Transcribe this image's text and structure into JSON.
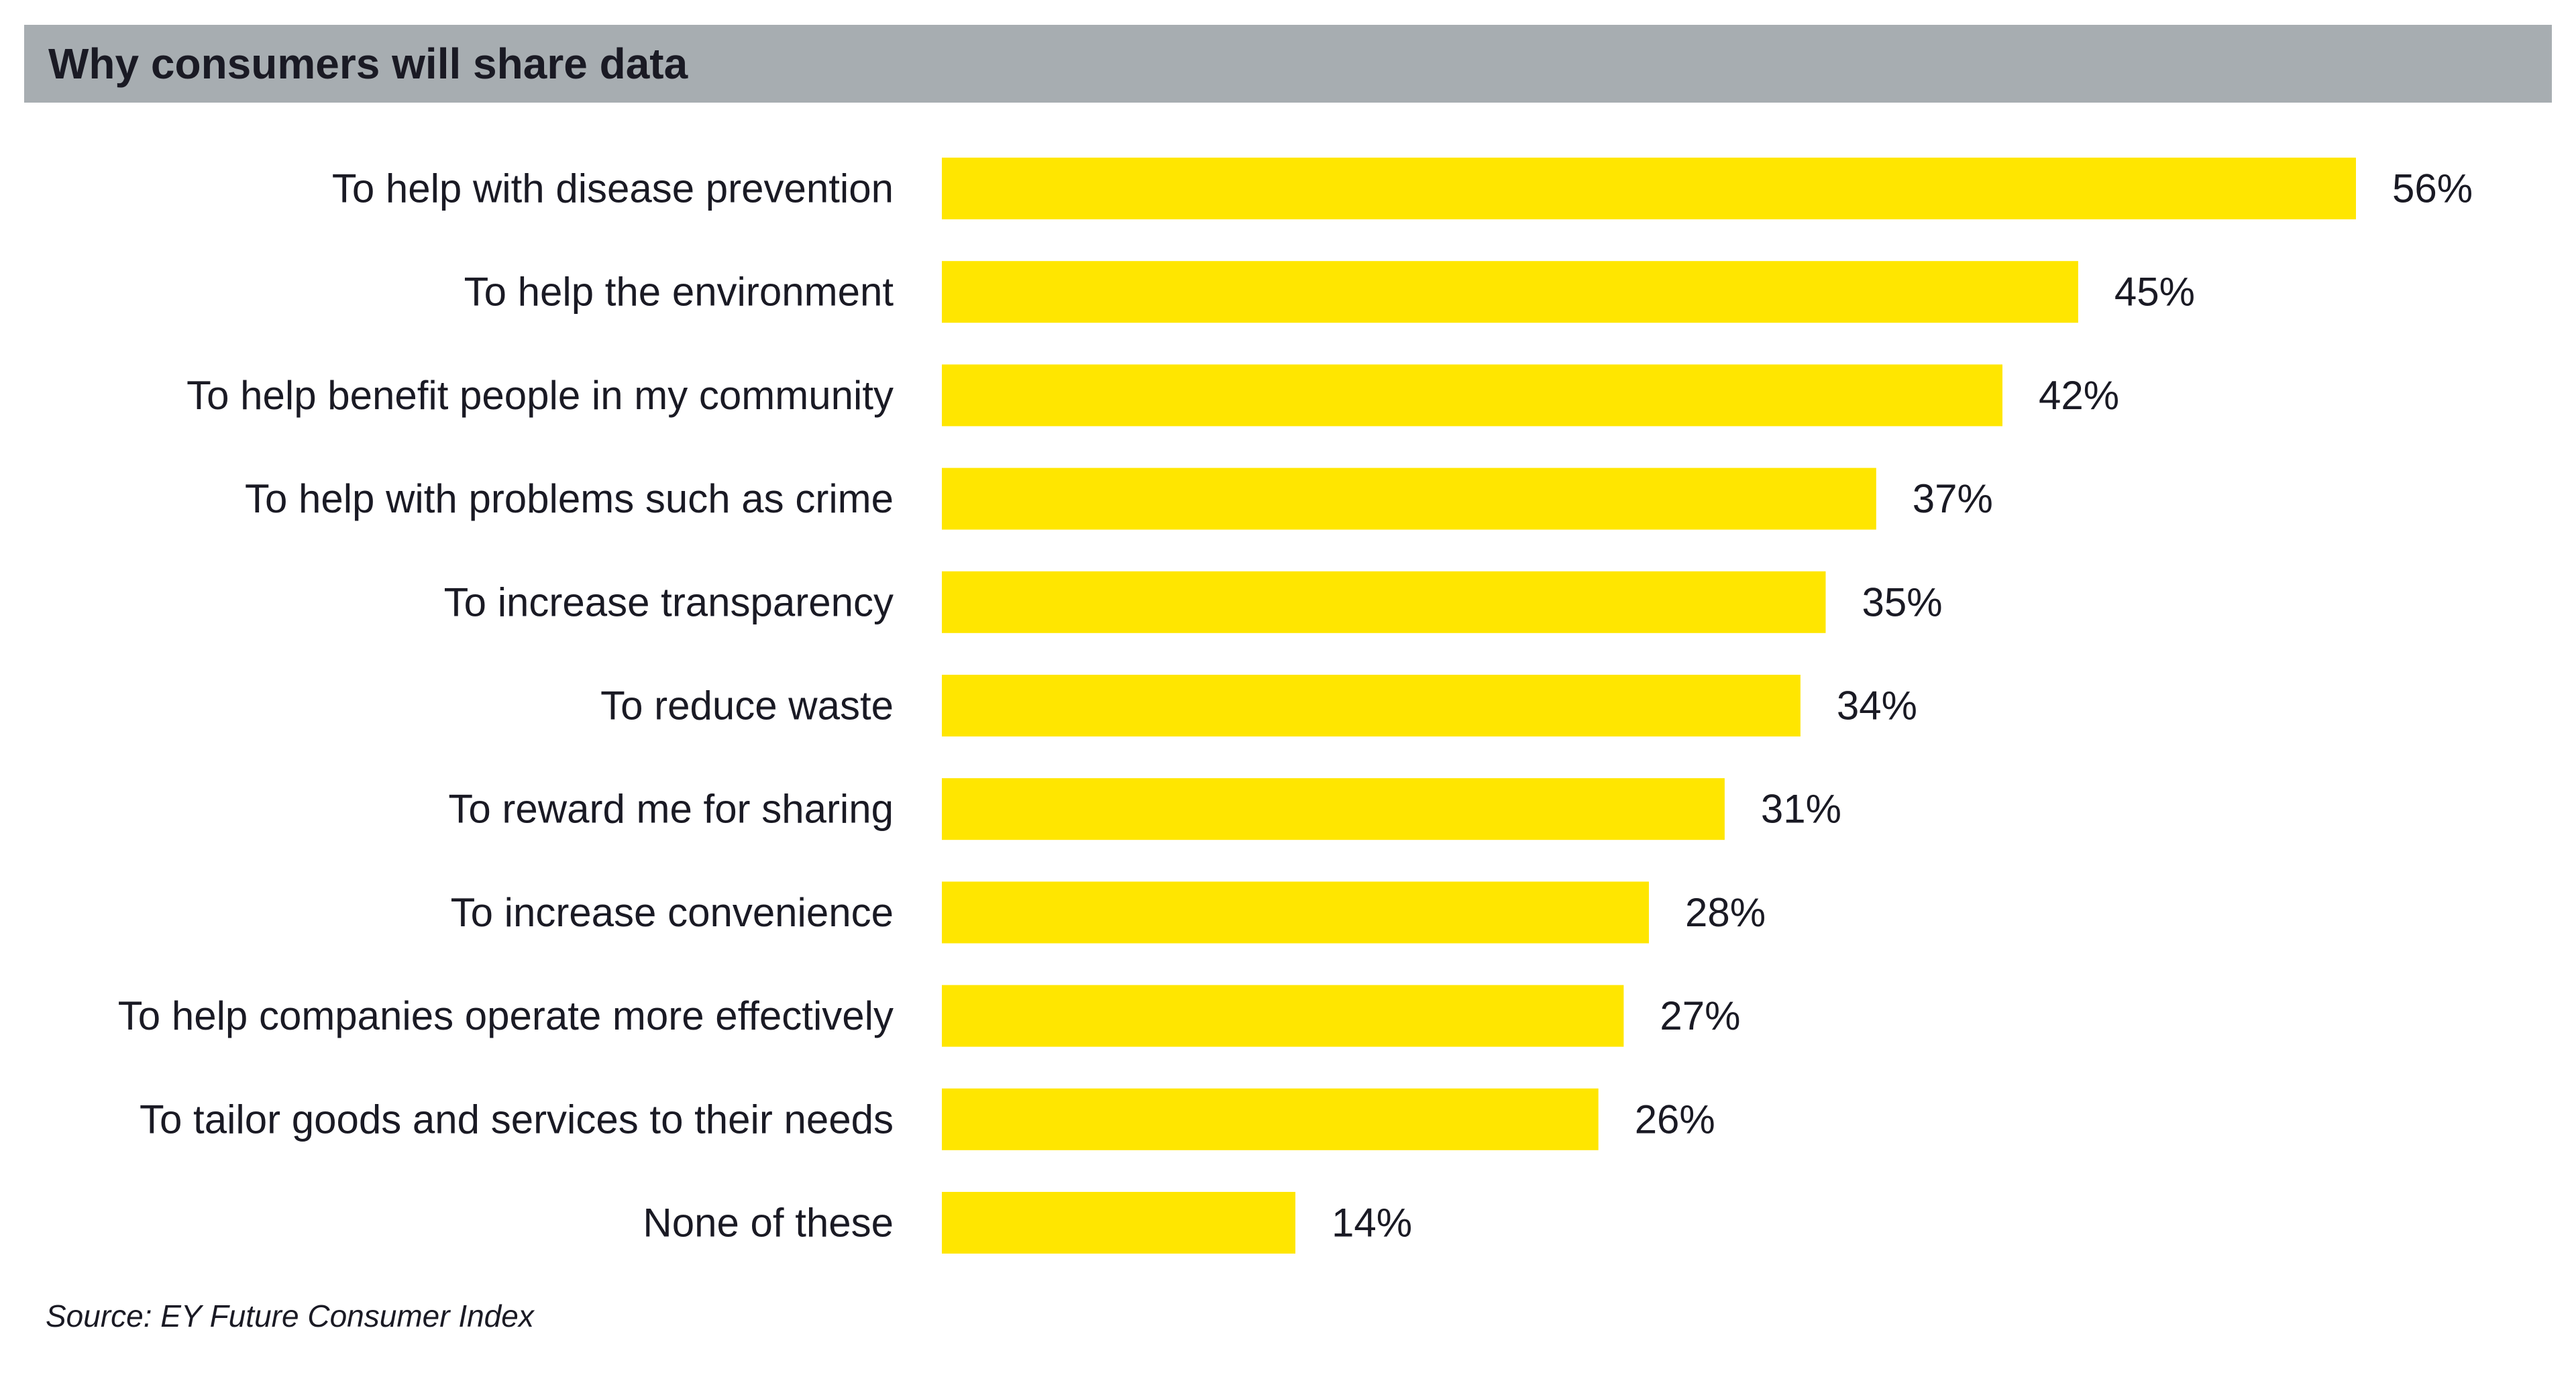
{
  "chart_data": {
    "type": "bar",
    "orientation": "horizontal",
    "title": "Why consumers will share data",
    "categories": [
      "To help with disease prevention",
      "To help the environment",
      "To help benefit people in my community",
      "To help with problems such as crime",
      "To increase transparency",
      "To reduce waste",
      "To reward me for sharing",
      "To increase convenience",
      "To help companies operate more effectively",
      "To tailor goods and services to their needs",
      "None of these"
    ],
    "values": [
      56,
      45,
      42,
      37,
      35,
      34,
      31,
      28,
      27,
      26,
      14
    ],
    "value_labels": [
      "56%",
      "45%",
      "42%",
      "37%",
      "35%",
      "34%",
      "31%",
      "28%",
      "27%",
      "26%",
      "14%"
    ],
    "unit": "%",
    "xlabel": "",
    "ylabel": "",
    "xlim": [
      0,
      56
    ],
    "grid": false,
    "legend": "none",
    "bar_color": "#ffe600",
    "title_bar_color": "#a7adb1"
  },
  "source": "Source: EY Future Consumer Index"
}
